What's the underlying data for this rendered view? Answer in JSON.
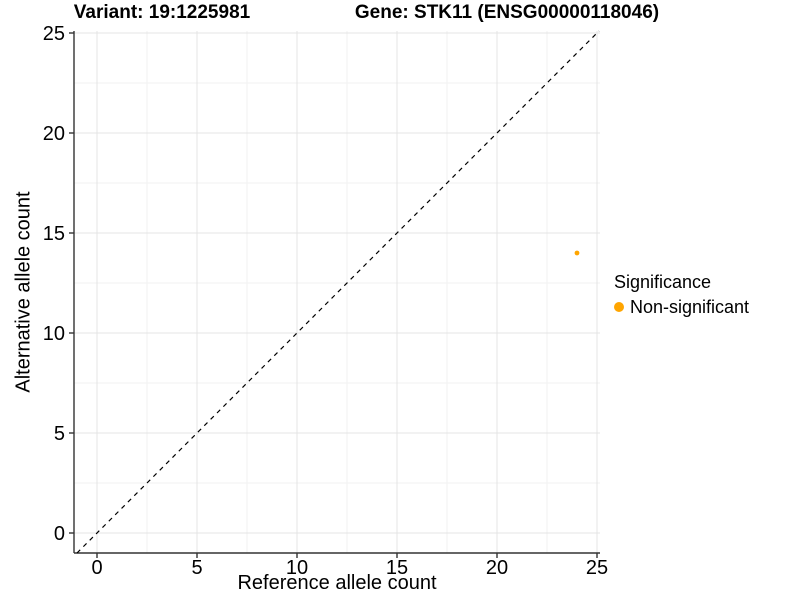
{
  "chart_data": {
    "type": "scatter",
    "title_left": "Variant: 19:1225981",
    "title_right": "Gene: STK11 (ENSG00000118046)",
    "xlabel": "Reference allele count",
    "ylabel": "Alternative allele count",
    "xlim": [
      -1.15,
      25.15
    ],
    "ylim": [
      -1.0,
      25.1
    ],
    "xticks": [
      0,
      5,
      10,
      15,
      20,
      25
    ],
    "yticks": [
      0,
      5,
      10,
      15,
      20,
      25
    ],
    "xticks_minor": [
      2.5,
      7.5,
      12.5,
      17.5,
      22.5
    ],
    "yticks_minor": [
      2.5,
      7.5,
      12.5,
      17.5,
      22.5
    ],
    "grid": true,
    "background": "#ffffff",
    "reference_line": {
      "type": "identity y=x",
      "style": "dashed",
      "color": "#000000"
    },
    "series": [
      {
        "name": "Non-significant",
        "color": "#FFA500",
        "points": [
          {
            "x": 24,
            "y": 14
          }
        ]
      }
    ],
    "legend": {
      "title": "Significance",
      "position": "right",
      "items": [
        {
          "label": "Non-significant",
          "color": "#FFA500"
        }
      ]
    },
    "colors": {
      "grid_major": "#e4e4e4",
      "grid_minor": "#f2f2f2",
      "axis": "#333333",
      "text": "#000000",
      "point": "#FFA500"
    }
  }
}
